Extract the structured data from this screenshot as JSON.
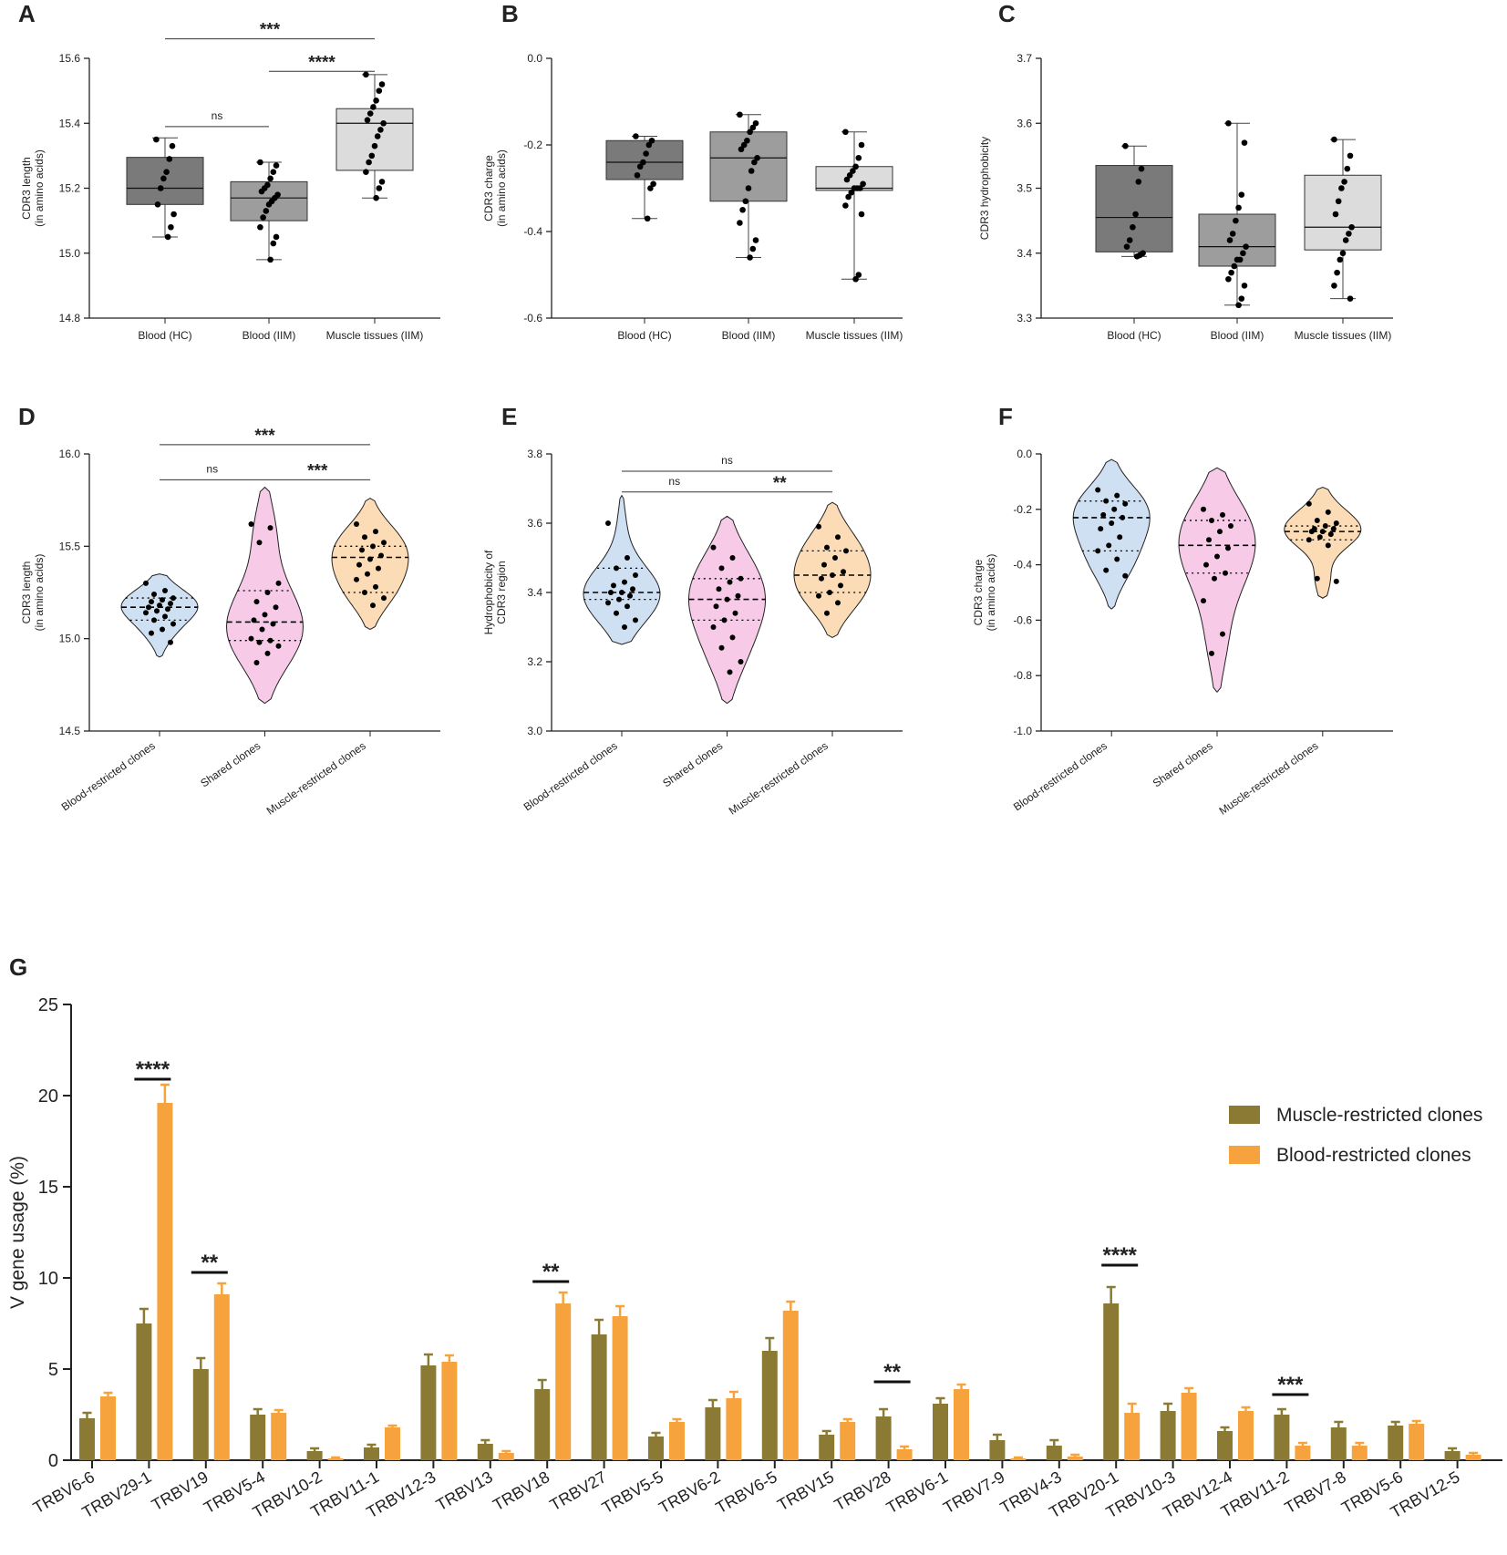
{
  "colors": {
    "box_hc": "#7a7a7a",
    "box_iim": "#9d9d9d",
    "box_muscle": "#dcdcdc",
    "violet_blood": "#cfe0f3",
    "violet_shared": "#f7cbe8",
    "violet_muscle": "#fbdcb6",
    "bar_muscle": "#8a7a34",
    "bar_blood": "#f6a33d"
  },
  "chart_data": [
    {
      "panel": "A",
      "type": "box",
      "ylabel": [
        "CDR3 length",
        "(in amino acids)"
      ],
      "ylim": [
        14.8,
        15.6
      ],
      "yticks": [
        14.8,
        15.0,
        15.2,
        15.4,
        15.6
      ],
      "ytick_labels": [
        "14.8",
        "15.0",
        "15.2",
        "15.4",
        "15.6"
      ],
      "categories": [
        "Blood (HC)",
        "Blood (IIM)",
        "Muscle tissues (IIM)"
      ],
      "boxes": [
        {
          "min": 15.05,
          "q1": 15.15,
          "median": 15.2,
          "q3": 15.295,
          "max": 15.355,
          "fill": "box_hc",
          "points": [
            15.35,
            15.33,
            15.29,
            15.25,
            15.23,
            15.2,
            15.15,
            15.12,
            15.08,
            15.05
          ]
        },
        {
          "min": 14.98,
          "q1": 15.1,
          "median": 15.17,
          "q3": 15.22,
          "max": 15.28,
          "fill": "box_iim",
          "points": [
            15.28,
            15.27,
            15.25,
            15.23,
            15.21,
            15.2,
            15.19,
            15.18,
            15.17,
            15.16,
            15.15,
            15.13,
            15.11,
            15.08,
            15.05,
            15.03,
            14.98
          ]
        },
        {
          "min": 15.17,
          "q1": 15.255,
          "median": 15.4,
          "q3": 15.445,
          "max": 15.55,
          "fill": "box_muscle",
          "points": [
            15.55,
            15.52,
            15.5,
            15.47,
            15.45,
            15.43,
            15.41,
            15.4,
            15.38,
            15.36,
            15.33,
            15.3,
            15.28,
            15.25,
            15.22,
            15.2,
            15.17
          ]
        }
      ],
      "sig": [
        {
          "from": 1,
          "to": 2,
          "label": "ns",
          "level": 15.39
        },
        {
          "from": 2,
          "to": 3,
          "label": "****",
          "level": 15.56
        },
        {
          "from": 1,
          "to": 3,
          "label": "***",
          "level": 15.66
        }
      ]
    },
    {
      "panel": "B",
      "type": "box",
      "ylabel": [
        "CDR3 charge",
        "(in amino acids)"
      ],
      "ylim": [
        -0.6,
        0.0
      ],
      "yticks": [
        -0.6,
        -0.4,
        -0.2,
        0.0
      ],
      "ytick_labels": [
        "-0.6",
        "-0.4",
        "-0.2",
        "0.0"
      ],
      "categories": [
        "Blood (HC)",
        "Blood (IIM)",
        "Muscle tissues (IIM)"
      ],
      "boxes": [
        {
          "min": -0.37,
          "q1": -0.28,
          "median": -0.24,
          "q3": -0.19,
          "max": -0.18,
          "fill": "box_hc",
          "points": [
            -0.18,
            -0.19,
            -0.2,
            -0.22,
            -0.24,
            -0.25,
            -0.27,
            -0.29,
            -0.3,
            -0.37
          ]
        },
        {
          "min": -0.46,
          "q1": -0.33,
          "median": -0.23,
          "q3": -0.17,
          "max": -0.13,
          "fill": "box_iim",
          "points": [
            -0.13,
            -0.15,
            -0.16,
            -0.17,
            -0.19,
            -0.2,
            -0.21,
            -0.23,
            -0.24,
            -0.26,
            -0.3,
            -0.33,
            -0.35,
            -0.38,
            -0.42,
            -0.44,
            -0.46
          ]
        },
        {
          "min": -0.51,
          "q1": -0.305,
          "median": -0.3,
          "q3": -0.25,
          "max": -0.17,
          "fill": "box_muscle",
          "points": [
            -0.17,
            -0.2,
            -0.23,
            -0.25,
            -0.26,
            -0.27,
            -0.28,
            -0.29,
            -0.3,
            -0.3,
            -0.3,
            -0.31,
            -0.32,
            -0.34,
            -0.36,
            -0.5,
            -0.51
          ]
        }
      ],
      "sig": []
    },
    {
      "panel": "C",
      "type": "box",
      "ylabel": [
        "CDR3 hydrophobicity"
      ],
      "ylim": [
        3.3,
        3.7
      ],
      "yticks": [
        3.3,
        3.4,
        3.5,
        3.6,
        3.7
      ],
      "ytick_labels": [
        "3.3",
        "3.4",
        "3.5",
        "3.6",
        "3.7"
      ],
      "categories": [
        "Blood (HC)",
        "Blood (IIM)",
        "Muscle tissues (IIM)"
      ],
      "boxes": [
        {
          "min": 3.395,
          "q1": 3.402,
          "median": 3.455,
          "q3": 3.535,
          "max": 3.565,
          "fill": "box_hc",
          "points": [
            3.565,
            3.53,
            3.51,
            3.46,
            3.44,
            3.42,
            3.41,
            3.4,
            3.397,
            3.395
          ]
        },
        {
          "min": 3.32,
          "q1": 3.38,
          "median": 3.41,
          "q3": 3.46,
          "max": 3.6,
          "fill": "box_iim",
          "points": [
            3.6,
            3.57,
            3.49,
            3.47,
            3.45,
            3.43,
            3.42,
            3.41,
            3.4,
            3.39,
            3.39,
            3.38,
            3.37,
            3.36,
            3.35,
            3.33,
            3.32
          ]
        },
        {
          "min": 3.33,
          "q1": 3.405,
          "median": 3.44,
          "q3": 3.52,
          "max": 3.575,
          "fill": "box_muscle",
          "points": [
            3.575,
            3.55,
            3.53,
            3.51,
            3.5,
            3.48,
            3.46,
            3.44,
            3.43,
            3.42,
            3.4,
            3.39,
            3.37,
            3.35,
            3.33
          ]
        }
      ],
      "sig": []
    },
    {
      "panel": "D",
      "type": "violin",
      "ylabel": [
        "CDR3 length",
        "(in amino acids)"
      ],
      "ylim": [
        14.5,
        16.0
      ],
      "yticks": [
        14.5,
        15.0,
        15.5,
        16.0
      ],
      "ytick_labels": [
        "14.5",
        "15.0",
        "15.5",
        "16.0"
      ],
      "categories": [
        "Blood-restricted clones",
        "Shared clones",
        "Muscle-restricted clones"
      ],
      "violins": [
        {
          "fill": "violet_blood",
          "range": [
            14.9,
            15.35
          ],
          "median": 15.17,
          "q1": 15.1,
          "q3": 15.22,
          "points": [
            15.3,
            15.26,
            15.24,
            15.22,
            15.21,
            15.2,
            15.19,
            15.18,
            15.17,
            15.16,
            15.15,
            15.14,
            15.12,
            15.1,
            15.08,
            15.05,
            15.03,
            14.98
          ]
        },
        {
          "fill": "violet_shared",
          "range": [
            14.65,
            15.82
          ],
          "median": 15.09,
          "q1": 14.99,
          "q3": 15.26,
          "points": [
            15.62,
            15.6,
            15.52,
            15.3,
            15.25,
            15.2,
            15.17,
            15.13,
            15.1,
            15.08,
            15.05,
            15.0,
            14.99,
            14.98,
            14.96,
            14.92,
            14.87
          ]
        },
        {
          "fill": "violet_muscle",
          "range": [
            15.05,
            15.76
          ],
          "median": 15.44,
          "q1": 15.25,
          "q3": 15.5,
          "points": [
            15.62,
            15.58,
            15.55,
            15.52,
            15.5,
            15.48,
            15.45,
            15.43,
            15.4,
            15.38,
            15.35,
            15.32,
            15.28,
            15.25,
            15.22,
            15.18
          ]
        }
      ],
      "sig": [
        {
          "from": 1,
          "to": 2,
          "label": "ns",
          "level": 15.86
        },
        {
          "from": 2,
          "to": 3,
          "label": "***",
          "level": 15.86
        },
        {
          "from": 1,
          "to": 3,
          "label": "***",
          "level": 16.05
        }
      ]
    },
    {
      "panel": "E",
      "type": "violin",
      "ylabel": [
        "Hydrophobicity of",
        "CDR3 region"
      ],
      "ylim": [
        3.0,
        3.8
      ],
      "yticks": [
        3.0,
        3.2,
        3.4,
        3.6,
        3.8
      ],
      "ytick_labels": [
        "3.0",
        "3.2",
        "3.4",
        "3.6",
        "3.8"
      ],
      "categories": [
        "Blood-restricted clones",
        "Shared clones",
        "Muscle-restricted clones"
      ],
      "violins": [
        {
          "fill": "violet_blood",
          "range": [
            3.25,
            3.68
          ],
          "median": 3.4,
          "q1": 3.38,
          "q3": 3.47,
          "points": [
            3.6,
            3.5,
            3.47,
            3.45,
            3.43,
            3.42,
            3.41,
            3.4,
            3.4,
            3.39,
            3.38,
            3.37,
            3.36,
            3.34,
            3.32,
            3.3
          ]
        },
        {
          "fill": "violet_shared",
          "range": [
            3.08,
            3.62
          ],
          "median": 3.38,
          "q1": 3.32,
          "q3": 3.44,
          "points": [
            3.53,
            3.5,
            3.47,
            3.44,
            3.43,
            3.41,
            3.39,
            3.38,
            3.36,
            3.34,
            3.32,
            3.3,
            3.27,
            3.24,
            3.2,
            3.17
          ]
        },
        {
          "fill": "violet_muscle",
          "range": [
            3.27,
            3.66
          ],
          "median": 3.45,
          "q1": 3.4,
          "q3": 3.52,
          "points": [
            3.59,
            3.56,
            3.53,
            3.52,
            3.5,
            3.48,
            3.46,
            3.45,
            3.44,
            3.42,
            3.4,
            3.39,
            3.37,
            3.34
          ]
        }
      ],
      "sig": [
        {
          "from": 1,
          "to": 2,
          "label": "ns",
          "level": 3.69
        },
        {
          "from": 2,
          "to": 3,
          "label": "**",
          "level": 3.69
        },
        {
          "from": 1,
          "to": 3,
          "label": "ns",
          "level": 3.75
        }
      ]
    },
    {
      "panel": "F",
      "type": "violin",
      "ylabel": [
        "CDR3 charge",
        "(in amino acids)"
      ],
      "ylim": [
        -1.0,
        0.0
      ],
      "yticks": [
        -1.0,
        -0.8,
        -0.6,
        -0.4,
        -0.2,
        0.0
      ],
      "ytick_labels": [
        "-1.0",
        "-0.8",
        "-0.6",
        "-0.4",
        "-0.2",
        "0.0"
      ],
      "categories": [
        "Blood-restricted clones",
        "Shared clones",
        "Muscle-restricted clones"
      ],
      "violins": [
        {
          "fill": "violet_blood",
          "range": [
            -0.56,
            -0.02
          ],
          "median": -0.23,
          "q1": -0.35,
          "q3": -0.17,
          "points": [
            -0.13,
            -0.15,
            -0.17,
            -0.18,
            -0.2,
            -0.22,
            -0.23,
            -0.25,
            -0.27,
            -0.3,
            -0.33,
            -0.35,
            -0.38,
            -0.42,
            -0.44
          ]
        },
        {
          "fill": "violet_shared",
          "range": [
            -0.86,
            -0.05
          ],
          "median": -0.33,
          "q1": -0.43,
          "q3": -0.24,
          "points": [
            -0.2,
            -0.22,
            -0.24,
            -0.26,
            -0.28,
            -0.31,
            -0.34,
            -0.37,
            -0.4,
            -0.43,
            -0.45,
            -0.53,
            -0.65,
            -0.72
          ]
        },
        {
          "fill": "violet_muscle",
          "range": [
            -0.52,
            -0.12
          ],
          "median": -0.28,
          "q1": -0.31,
          "q3": -0.26,
          "points": [
            -0.18,
            -0.21,
            -0.24,
            -0.25,
            -0.26,
            -0.27,
            -0.27,
            -0.28,
            -0.28,
            -0.29,
            -0.3,
            -0.31,
            -0.33,
            -0.45,
            -0.46
          ]
        }
      ],
      "sig": []
    },
    {
      "panel": "G",
      "type": "bar",
      "ylabel": "V gene usage (%)",
      "ylim": [
        0,
        25
      ],
      "yticks": [
        0,
        5,
        10,
        15,
        20,
        25
      ],
      "ytick_labels": [
        "0",
        "5",
        "10",
        "15",
        "20",
        "25"
      ],
      "categories": [
        "TRBV6-6",
        "TRBV29-1",
        "TRBV19",
        "TRBV5-4",
        "TRBV10-2",
        "TRBV11-1",
        "TRBV12-3",
        "TRBV13",
        "TRBV18",
        "TRBV27",
        "TRBV5-5",
        "TRBV6-2",
        "TRBV6-5",
        "TRBV15",
        "TRBV28",
        "TRBV6-1",
        "TRBV7-9",
        "TRBV4-3",
        "TRBV20-1",
        "TRBV10-3",
        "TRBV12-4",
        "TRBV11-2",
        "TRBV7-8",
        "TRBV5-6",
        "TRBV12-5"
      ],
      "series": [
        {
          "name": "Muscle-restricted clones",
          "color": "bar_muscle",
          "values": [
            2.3,
            7.5,
            5.0,
            2.5,
            0.5,
            0.7,
            5.2,
            0.9,
            3.9,
            6.9,
            1.3,
            2.9,
            6.0,
            1.4,
            2.4,
            3.1,
            1.1,
            0.8,
            8.6,
            2.7,
            1.6,
            2.5,
            1.8,
            1.9,
            0.5
          ],
          "errors": [
            0.3,
            0.8,
            0.6,
            0.3,
            0.15,
            0.15,
            0.6,
            0.2,
            0.5,
            0.8,
            0.2,
            0.4,
            0.7,
            0.2,
            0.4,
            0.3,
            0.3,
            0.3,
            0.9,
            0.4,
            0.2,
            0.3,
            0.3,
            0.2,
            0.15
          ]
        },
        {
          "name": "Blood-restricted clones",
          "color": "bar_blood",
          "values": [
            3.5,
            19.6,
            9.1,
            2.6,
            0.1,
            1.8,
            5.4,
            0.4,
            8.6,
            7.9,
            2.1,
            3.4,
            8.2,
            2.1,
            0.6,
            3.9,
            0.1,
            0.2,
            2.6,
            3.7,
            2.7,
            0.8,
            0.8,
            2.0,
            0.3
          ]
        }
      ],
      "blood_errors": [
        0.2,
        1.0,
        0.6,
        0.15,
        0.05,
        0.1,
        0.35,
        0.1,
        0.6,
        0.55,
        0.15,
        0.35,
        0.5,
        0.15,
        0.15,
        0.25,
        0.05,
        0.1,
        0.5,
        0.25,
        0.2,
        0.15,
        0.15,
        0.15,
        0.1
      ],
      "sig": [
        {
          "index": 1,
          "label": "****",
          "level": 20.9
        },
        {
          "index": 2,
          "label": "**",
          "level": 10.3
        },
        {
          "index": 8,
          "label": "**",
          "level": 9.8
        },
        {
          "index": 14,
          "label": "**",
          "level": 4.3
        },
        {
          "index": 18,
          "label": "****",
          "level": 10.7
        },
        {
          "index": 21,
          "label": "***",
          "level": 3.6
        }
      ],
      "legend_position": "top-right"
    }
  ]
}
